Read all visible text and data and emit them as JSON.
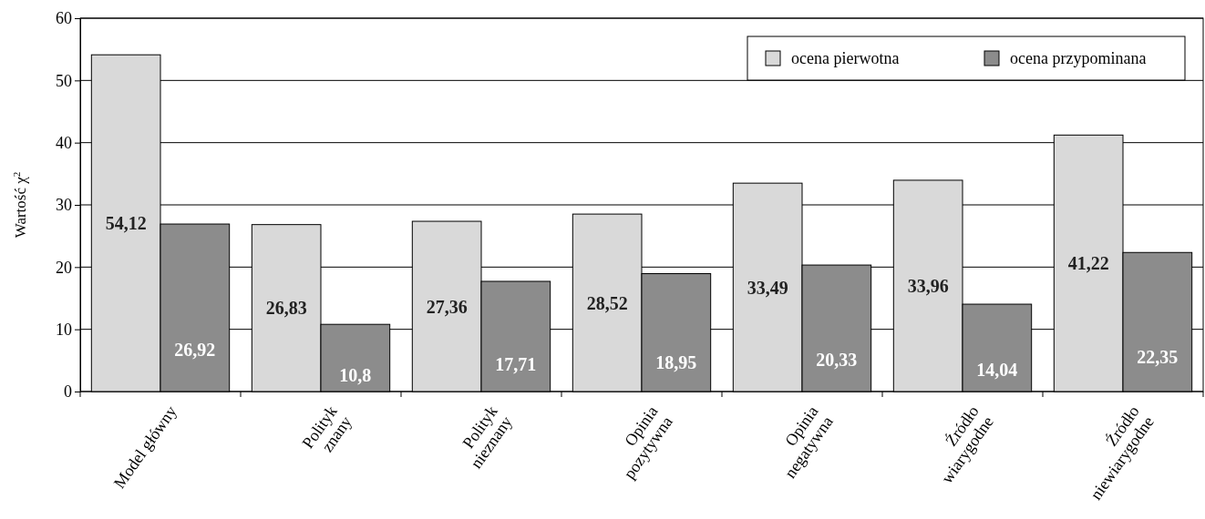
{
  "chart_data": {
    "type": "bar",
    "ylabel": "Wartość χ$^{2}$",
    "categories": [
      "Model główny",
      "Polityk\nznany",
      "Polityk\nnieznany",
      "Opinia\npozytywna",
      "Opinia\nnegatywna",
      "Źródło\nwiarygodne",
      "Źródło\nniewiarygodne"
    ],
    "series": [
      {
        "name": "ocena pierwotna",
        "color": "#d9d9d9",
        "values": [
          54.12,
          26.83,
          27.36,
          28.52,
          33.49,
          33.96,
          41.22
        ],
        "value_labels": [
          "54,12",
          "26,83",
          "27,36",
          "28,52",
          "33,49",
          "33,96",
          "41,22"
        ]
      },
      {
        "name": "ocena przypominana",
        "color": "#8c8c8c",
        "values": [
          26.92,
          10.8,
          17.71,
          18.95,
          20.33,
          14.04,
          22.35
        ],
        "value_labels": [
          "26,92",
          "10,8",
          "17,71",
          "18,95",
          "20,33",
          "14,04",
          "22,35"
        ]
      }
    ],
    "ylim": [
      0,
      60
    ],
    "yticks": [
      0,
      10,
      20,
      30,
      40,
      50,
      60
    ],
    "grid": "y",
    "legend": "top right"
  }
}
